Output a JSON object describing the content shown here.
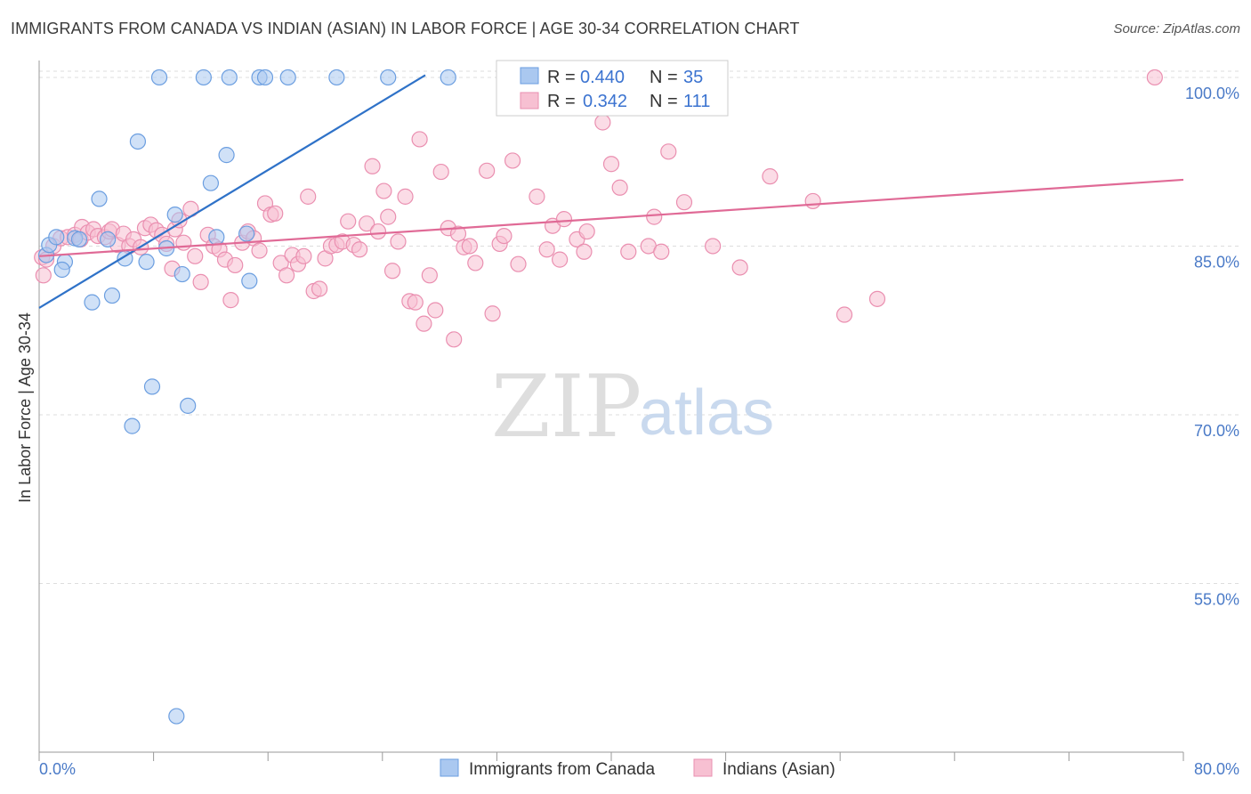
{
  "header": {
    "title": "IMMIGRANTS FROM CANADA VS INDIAN (ASIAN) IN LABOR FORCE | AGE 30-34 CORRELATION CHART",
    "source": "Source: ZipAtlas.com"
  },
  "watermark": {
    "zip": "ZIP",
    "atlas": "atlas"
  },
  "legend_box": {
    "rows": [
      {
        "r_label": "R =",
        "r_value": "0.440",
        "n_label": "N =",
        "n_value": "35"
      },
      {
        "r_label": "R =",
        "r_value": "0.342",
        "n_label": "N =",
        "n_value": "111"
      }
    ]
  },
  "bottom_legend": {
    "items": [
      "Immigrants from Canada",
      "Indians (Asian)"
    ]
  },
  "colors": {
    "blue_fill": "#aac8f0",
    "blue_stroke": "#6b9ee0",
    "blue_line": "#2f72c8",
    "pink_fill": "#f7c0d2",
    "pink_stroke": "#ea8fb0",
    "pink_line": "#e06a96",
    "tick_label": "#4a7ac7",
    "grid": "#dddddd"
  },
  "chart_data": {
    "type": "scatter",
    "title": "IMMIGRANTS FROM CANADA VS INDIAN (ASIAN) IN LABOR FORCE | AGE 30-34 CORRELATION CHART",
    "xlabel": "",
    "ylabel": "In Labor Force | Age 30-34",
    "xlim": [
      0,
      80
    ],
    "ylim": [
      40,
      101.5
    ],
    "x_ticks": [
      "0.0%",
      "80.0%"
    ],
    "y_ticks": [
      {
        "value": 55,
        "label": "55.0%"
      },
      {
        "value": 70,
        "label": "70.0%"
      },
      {
        "value": 85,
        "label": "85.0%"
      },
      {
        "value": 100,
        "label": "100.0%"
      }
    ],
    "grid": true,
    "legend_position": "top-center",
    "series": [
      {
        "name": "Immigrants from Canada",
        "R": 0.44,
        "N": 35,
        "trend": [
          [
            0,
            79.5
          ],
          [
            27,
            100.2
          ]
        ],
        "points": [
          [
            0.5,
            84.2
          ],
          [
            0.7,
            85.1
          ],
          [
            1.2,
            85.8
          ],
          [
            1.8,
            83.6
          ],
          [
            1.6,
            82.9
          ],
          [
            2.5,
            85.7
          ],
          [
            2.8,
            85.6
          ],
          [
            3.7,
            80.0
          ],
          [
            4.2,
            89.2
          ],
          [
            4.8,
            85.6
          ],
          [
            5.1,
            80.6
          ],
          [
            6.0,
            83.9
          ],
          [
            6.5,
            69.0
          ],
          [
            6.9,
            94.3
          ],
          [
            7.5,
            83.6
          ],
          [
            7.9,
            72.5
          ],
          [
            8.4,
            100.0
          ],
          [
            8.9,
            84.8
          ],
          [
            9.5,
            87.8
          ],
          [
            9.6,
            43.2
          ],
          [
            10.0,
            82.5
          ],
          [
            10.4,
            70.8
          ],
          [
            11.5,
            100.0
          ],
          [
            12.0,
            90.6
          ],
          [
            12.4,
            85.8
          ],
          [
            13.1,
            93.1
          ],
          [
            13.3,
            100.0
          ],
          [
            14.5,
            86.1
          ],
          [
            14.7,
            81.9
          ],
          [
            15.4,
            100.0
          ],
          [
            15.8,
            100.0
          ],
          [
            17.4,
            100.0
          ],
          [
            20.8,
            100.0
          ],
          [
            24.4,
            100.0
          ],
          [
            28.6,
            100.0
          ]
        ]
      },
      {
        "name": "Indians (Asian)",
        "R": 0.342,
        "N": 111,
        "trend": [
          [
            0,
            84.1
          ],
          [
            80,
            90.9
          ]
        ],
        "points": [
          [
            0.2,
            84.0
          ],
          [
            0.3,
            82.4
          ],
          [
            0.5,
            83.8
          ],
          [
            1.0,
            85.0
          ],
          [
            1.5,
            85.7
          ],
          [
            2.0,
            85.8
          ],
          [
            2.5,
            86.0
          ],
          [
            2.9,
            85.6
          ],
          [
            3.0,
            86.7
          ],
          [
            3.4,
            86.2
          ],
          [
            3.8,
            86.5
          ],
          [
            4.1,
            85.9
          ],
          [
            4.6,
            85.8
          ],
          [
            4.9,
            86.3
          ],
          [
            5.1,
            86.5
          ],
          [
            5.5,
            85.1
          ],
          [
            5.9,
            86.1
          ],
          [
            6.3,
            85.0
          ],
          [
            6.6,
            85.6
          ],
          [
            7.1,
            84.9
          ],
          [
            7.4,
            86.6
          ],
          [
            7.8,
            86.9
          ],
          [
            8.2,
            86.4
          ],
          [
            8.6,
            86.0
          ],
          [
            8.9,
            85.2
          ],
          [
            9.3,
            83.0
          ],
          [
            9.5,
            86.5
          ],
          [
            9.8,
            87.3
          ],
          [
            10.1,
            85.3
          ],
          [
            10.6,
            88.3
          ],
          [
            10.9,
            84.1
          ],
          [
            11.3,
            81.8
          ],
          [
            11.8,
            86.0
          ],
          [
            12.2,
            85.0
          ],
          [
            12.6,
            84.7
          ],
          [
            13.0,
            83.8
          ],
          [
            13.4,
            80.2
          ],
          [
            13.7,
            83.3
          ],
          [
            14.2,
            85.3
          ],
          [
            14.6,
            86.3
          ],
          [
            15.0,
            85.7
          ],
          [
            15.4,
            84.6
          ],
          [
            15.8,
            88.8
          ],
          [
            16.2,
            87.8
          ],
          [
            16.5,
            87.9
          ],
          [
            16.9,
            83.5
          ],
          [
            17.3,
            82.4
          ],
          [
            17.7,
            84.2
          ],
          [
            18.1,
            83.4
          ],
          [
            18.5,
            84.1
          ],
          [
            18.8,
            89.4
          ],
          [
            19.2,
            81.0
          ],
          [
            19.6,
            81.2
          ],
          [
            20.0,
            83.9
          ],
          [
            20.4,
            85.0
          ],
          [
            20.8,
            85.1
          ],
          [
            21.2,
            85.4
          ],
          [
            21.6,
            87.2
          ],
          [
            22.0,
            85.1
          ],
          [
            22.4,
            84.7
          ],
          [
            22.9,
            87.0
          ],
          [
            23.3,
            92.1
          ],
          [
            23.7,
            86.3
          ],
          [
            24.1,
            89.9
          ],
          [
            24.4,
            87.6
          ],
          [
            24.7,
            82.8
          ],
          [
            25.1,
            85.4
          ],
          [
            25.6,
            89.4
          ],
          [
            25.9,
            80.1
          ],
          [
            26.3,
            80.0
          ],
          [
            26.6,
            94.5
          ],
          [
            26.9,
            78.1
          ],
          [
            27.3,
            82.4
          ],
          [
            27.7,
            79.3
          ],
          [
            28.1,
            91.6
          ],
          [
            28.6,
            86.6
          ],
          [
            29.0,
            76.7
          ],
          [
            29.3,
            86.1
          ],
          [
            29.7,
            84.9
          ],
          [
            30.1,
            85.0
          ],
          [
            30.5,
            83.5
          ],
          [
            31.3,
            91.7
          ],
          [
            31.7,
            79.0
          ],
          [
            32.2,
            85.2
          ],
          [
            32.5,
            85.9
          ],
          [
            33.1,
            92.6
          ],
          [
            33.5,
            83.4
          ],
          [
            34.8,
            89.4
          ],
          [
            35.5,
            84.7
          ],
          [
            35.9,
            86.8
          ],
          [
            36.4,
            83.8
          ],
          [
            36.7,
            87.4
          ],
          [
            37.6,
            85.6
          ],
          [
            38.1,
            84.5
          ],
          [
            38.3,
            86.3
          ],
          [
            39.4,
            96.0
          ],
          [
            40.0,
            92.3
          ],
          [
            40.6,
            90.2
          ],
          [
            41.2,
            84.5
          ],
          [
            42.6,
            85.0
          ],
          [
            43.0,
            87.6
          ],
          [
            43.5,
            84.5
          ],
          [
            44.0,
            93.4
          ],
          [
            45.1,
            88.9
          ],
          [
            47.1,
            85.0
          ],
          [
            49.0,
            83.1
          ],
          [
            51.1,
            91.2
          ],
          [
            54.1,
            89.0
          ],
          [
            56.3,
            78.9
          ],
          [
            58.6,
            80.3
          ],
          [
            78.0,
            100.0
          ]
        ]
      }
    ]
  }
}
